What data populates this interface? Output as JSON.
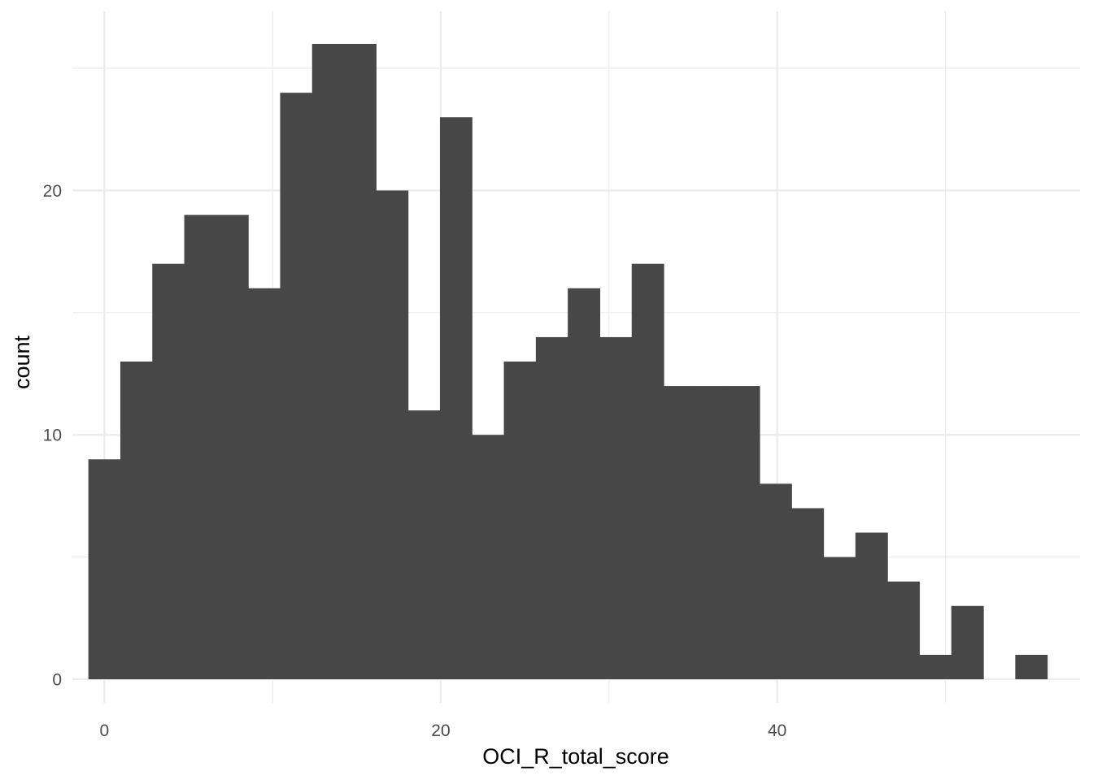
{
  "chart_data": {
    "type": "bar",
    "subtype": "histogram",
    "xlabel": "OCI_R_total_score",
    "ylabel": "count",
    "xlim": [
      -1.9,
      58
    ],
    "ylim": [
      0,
      26
    ],
    "x_ticks": [
      0,
      20,
      40
    ],
    "y_ticks": [
      0,
      10,
      20
    ],
    "grid": true,
    "bar_color": "#474747",
    "bins": [
      {
        "x0": -0.95,
        "x1": 0.95,
        "count": 9
      },
      {
        "x0": 0.95,
        "x1": 2.85,
        "count": 13
      },
      {
        "x0": 2.85,
        "x1": 4.75,
        "count": 17
      },
      {
        "x0": 4.75,
        "x1": 6.65,
        "count": 19
      },
      {
        "x0": 6.65,
        "x1": 8.55,
        "count": 19
      },
      {
        "x0": 8.55,
        "x1": 10.45,
        "count": 16
      },
      {
        "x0": 10.45,
        "x1": 12.35,
        "count": 24
      },
      {
        "x0": 12.35,
        "x1": 14.25,
        "count": 26
      },
      {
        "x0": 14.25,
        "x1": 16.15,
        "count": 26
      },
      {
        "x0": 16.15,
        "x1": 18.05,
        "count": 20
      },
      {
        "x0": 18.05,
        "x1": 19.95,
        "count": 11
      },
      {
        "x0": 19.95,
        "x1": 21.85,
        "count": 23
      },
      {
        "x0": 21.85,
        "x1": 23.75,
        "count": 10
      },
      {
        "x0": 23.75,
        "x1": 25.65,
        "count": 13
      },
      {
        "x0": 25.65,
        "x1": 27.55,
        "count": 14
      },
      {
        "x0": 27.55,
        "x1": 29.45,
        "count": 16
      },
      {
        "x0": 29.45,
        "x1": 31.35,
        "count": 14
      },
      {
        "x0": 31.35,
        "x1": 33.25,
        "count": 17
      },
      {
        "x0": 33.25,
        "x1": 35.15,
        "count": 12
      },
      {
        "x0": 35.15,
        "x1": 37.05,
        "count": 12
      },
      {
        "x0": 37.05,
        "x1": 38.95,
        "count": 12
      },
      {
        "x0": 38.95,
        "x1": 40.85,
        "count": 8
      },
      {
        "x0": 40.85,
        "x1": 42.75,
        "count": 7
      },
      {
        "x0": 42.75,
        "x1": 44.65,
        "count": 5
      },
      {
        "x0": 44.65,
        "x1": 46.55,
        "count": 6
      },
      {
        "x0": 46.55,
        "x1": 48.45,
        "count": 4
      },
      {
        "x0": 48.45,
        "x1": 50.35,
        "count": 1
      },
      {
        "x0": 50.35,
        "x1": 52.25,
        "count": 3
      },
      {
        "x0": 52.25,
        "x1": 54.15,
        "count": 0
      },
      {
        "x0": 54.15,
        "x1": 56.05,
        "count": 1
      }
    ]
  }
}
